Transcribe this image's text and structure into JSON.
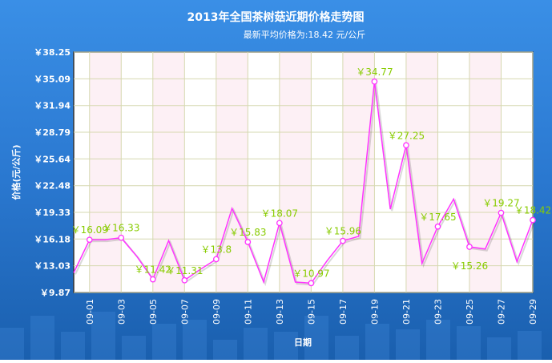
{
  "chart_data": {
    "type": "line",
    "title": "2013年全国茶树菇近期价格走势图",
    "subtitle": "最新平均价格为:18.42 元/公斤",
    "xlabel": "日期",
    "ylabel": "价格(元/公斤)",
    "ylim": [
      9.87,
      38.25
    ],
    "yticks": [
      "￥38.25",
      "￥35.09",
      "￥31.94",
      "￥28.79",
      "￥25.64",
      "￥22.48",
      "￥19.33",
      "￥16.18",
      "￥13.03",
      "￥9.87"
    ],
    "ytick_values": [
      38.25,
      35.09,
      31.94,
      28.79,
      25.64,
      22.48,
      19.33,
      16.18,
      13.03,
      9.87
    ],
    "xticks": [
      "09-01",
      "09-03",
      "09-05",
      "09-07",
      "09-09",
      "09-11",
      "09-13",
      "09-15",
      "09-17",
      "09-19",
      "09-21",
      "09-23",
      "09-25",
      "09-27",
      "09-29"
    ],
    "x": [
      "08-31",
      "09-01",
      "09-02",
      "09-03",
      "09-04",
      "09-05",
      "09-06",
      "09-07",
      "09-08",
      "09-09",
      "09-10",
      "09-11",
      "09-12",
      "09-13",
      "09-14",
      "09-15",
      "09-16",
      "09-17",
      "09-18",
      "09-19",
      "09-20",
      "09-21",
      "09-22",
      "09-23",
      "09-24",
      "09-25",
      "09-26",
      "09-27",
      "09-28",
      "09-29"
    ],
    "values": [
      12.2,
      16.09,
      16.1,
      16.33,
      14.1,
      11.42,
      16.0,
      11.31,
      12.6,
      13.8,
      19.8,
      15.83,
      11.1,
      18.07,
      11.1,
      10.97,
      13.6,
      15.96,
      16.5,
      34.77,
      19.7,
      27.25,
      13.3,
      17.65,
      20.9,
      15.26,
      15.0,
      19.27,
      13.5,
      18.42
    ],
    "data_labels": {
      "09-01": "￥16.09",
      "09-03": "￥16.33",
      "09-05": "￥11.42",
      "09-07": "￥11.31",
      "09-09": "￥13.8",
      "09-11": "￥15.83",
      "09-13": "￥18.07",
      "09-15": "￥10.97",
      "09-17": "￥15.96",
      "09-19": "￥34.77",
      "09-21": "￥27.25",
      "09-23": "￥17.65",
      "09-25": "￥15.26",
      "09-27": "￥19.27",
      "09-29": "￥18.42"
    },
    "grid": true,
    "colors": {
      "line": "#ff33ff",
      "label": "#88cc00",
      "label_gray": "#aaaaaa",
      "background": "#2a78d0"
    }
  }
}
